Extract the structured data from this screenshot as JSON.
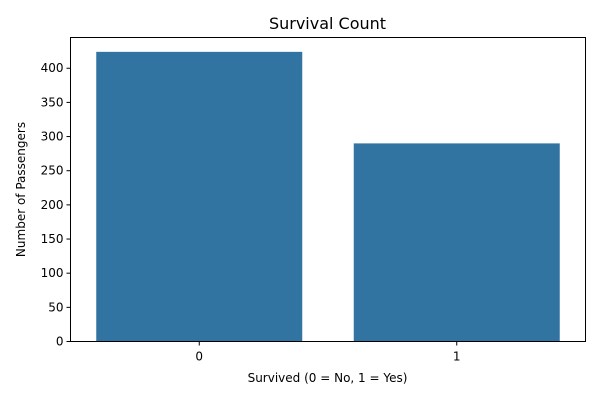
{
  "chart_data": {
    "type": "bar",
    "title": "Survival Count",
    "xlabel": "Survived (0 = No, 1 = Yes)",
    "ylabel": "Number of Passengers",
    "categories": [
      "0",
      "1"
    ],
    "values": [
      424,
      290
    ],
    "ylim": [
      0,
      445
    ],
    "yticks": [
      0,
      50,
      100,
      150,
      200,
      250,
      300,
      350,
      400
    ],
    "bar_color": "#3274a1",
    "grid": false,
    "legend": "none"
  }
}
